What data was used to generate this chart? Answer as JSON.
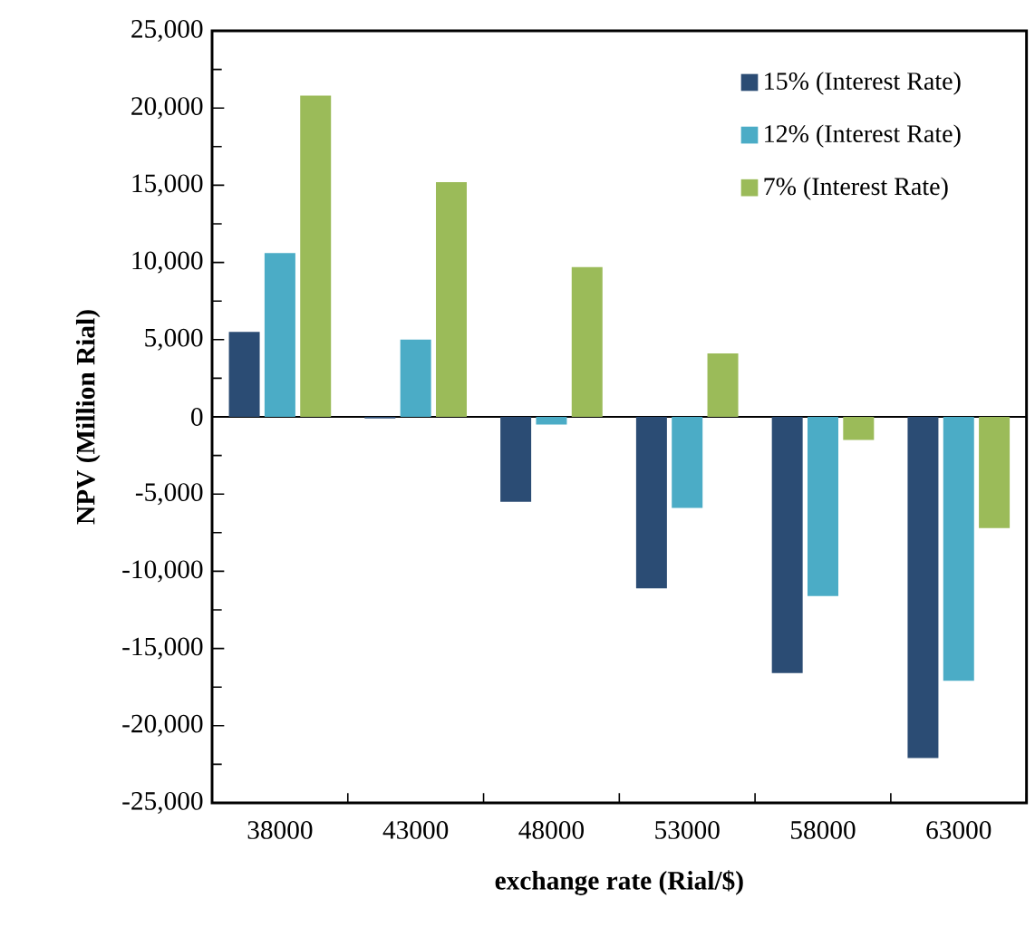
{
  "chart_data": {
    "type": "bar",
    "xlabel": "exchange rate (Rial/$)",
    "ylabel": "NPV (Million Rial)",
    "categories": [
      "38000",
      "43000",
      "48000",
      "53000",
      "58000",
      "63000"
    ],
    "series": [
      {
        "name": "15% (Interest Rate)",
        "color": "#2b4c74",
        "values": [
          5500,
          -100,
          -5500,
          -11100,
          -16600,
          -22100
        ]
      },
      {
        "name": "12% (Interest Rate)",
        "color": "#4bacc6",
        "values": [
          10600,
          5000,
          -500,
          -5900,
          -11600,
          -17100
        ]
      },
      {
        "name": "7% (Interest Rate)",
        "color": "#9bbb59",
        "values": [
          20800,
          15200,
          9700,
          4100,
          -1500,
          -7200
        ]
      }
    ],
    "ylim": [
      -25000,
      25000
    ],
    "yticks": [
      {
        "value": -25000,
        "label": "-25,000"
      },
      {
        "value": -20000,
        "label": "-20,000"
      },
      {
        "value": -15000,
        "label": "-15,000"
      },
      {
        "value": -10000,
        "label": "-10,000"
      },
      {
        "value": -5000,
        "label": "-5,000"
      },
      0,
      {
        "value": 5000,
        "label": "5,000"
      },
      {
        "value": 10000,
        "label": "10,000"
      },
      {
        "value": 15000,
        "label": "15,000"
      },
      {
        "value": 20000,
        "label": "20,000"
      },
      {
        "value": 25000,
        "label": "25,000"
      }
    ],
    "legend": "top right"
  }
}
